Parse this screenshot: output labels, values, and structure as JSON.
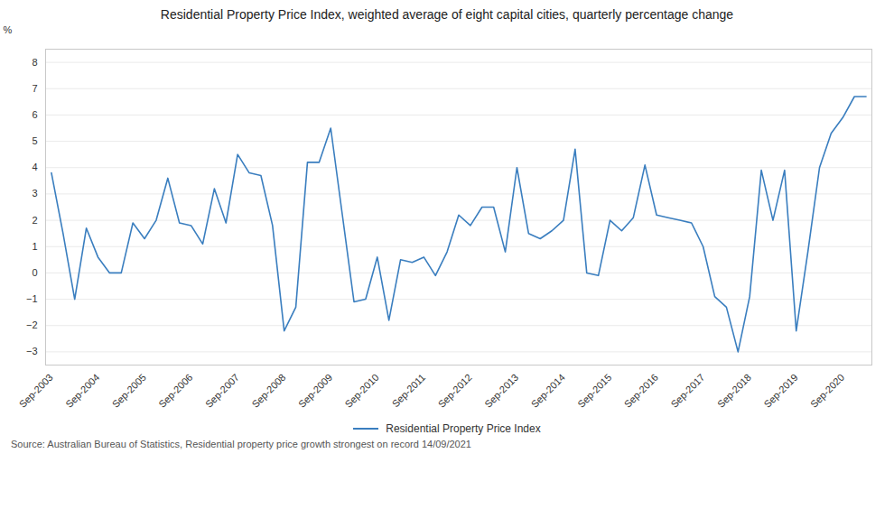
{
  "chart_data": {
    "type": "line",
    "title": "Residential Property Price Index, weighted average of eight capital cities, quarterly percentage change",
    "ylabel": "%",
    "source": "Source: Australian Bureau of Statistics, Residential property price growth strongest on record 14/09/2021",
    "categories": [
      "Sep-2003",
      null,
      null,
      null,
      "Sep-2004",
      null,
      null,
      null,
      "Sep-2005",
      null,
      null,
      null,
      "Sep-2006",
      null,
      null,
      null,
      "Sep-2007",
      null,
      null,
      null,
      "Sep-2008",
      null,
      null,
      null,
      "Sep-2009",
      null,
      null,
      null,
      "Sep-2010",
      null,
      null,
      null,
      "Sep-2011",
      null,
      null,
      null,
      "Sep-2012",
      null,
      null,
      null,
      "Sep-2013",
      null,
      null,
      null,
      "Sep-2014",
      null,
      null,
      null,
      "Sep-2015",
      null,
      null,
      null,
      "Sep-2016",
      null,
      null,
      null,
      "Sep-2017",
      null,
      null,
      null,
      "Sep-2018",
      null,
      null,
      null,
      "Sep-2019",
      null,
      null,
      null,
      "Sep-2020",
      null,
      null
    ],
    "series": [
      {
        "name": "Residential Property Price Index",
        "color": "#3a7ebf",
        "values": [
          3.8,
          1.5,
          -1.0,
          1.7,
          0.6,
          0.0,
          0.0,
          1.9,
          1.3,
          2.0,
          3.6,
          1.9,
          1.8,
          1.1,
          3.2,
          1.9,
          4.5,
          3.8,
          3.7,
          1.8,
          -2.2,
          -1.3,
          4.2,
          4.2,
          5.5,
          2.2,
          -1.1,
          -1.0,
          0.6,
          -1.8,
          0.5,
          0.4,
          0.6,
          -0.1,
          0.8,
          2.2,
          1.8,
          2.5,
          2.5,
          0.8,
          4.0,
          1.5,
          1.3,
          1.6,
          2.0,
          4.7,
          0.0,
          -0.1,
          2.0,
          1.6,
          2.1,
          4.1,
          2.2,
          2.1,
          2.0,
          1.9,
          1.0,
          -0.9,
          -1.3,
          -3.0,
          -0.9,
          3.9,
          2.0,
          3.9,
          -2.2,
          0.8,
          4.0,
          5.3,
          5.9,
          6.7,
          6.7
        ]
      }
    ],
    "ylim": [
      -3.5,
      8.5
    ],
    "yticks": [
      -3,
      -2,
      -1,
      0,
      1,
      2,
      3,
      4,
      5,
      6,
      7,
      8
    ],
    "grid": true,
    "legend": "bottom"
  }
}
